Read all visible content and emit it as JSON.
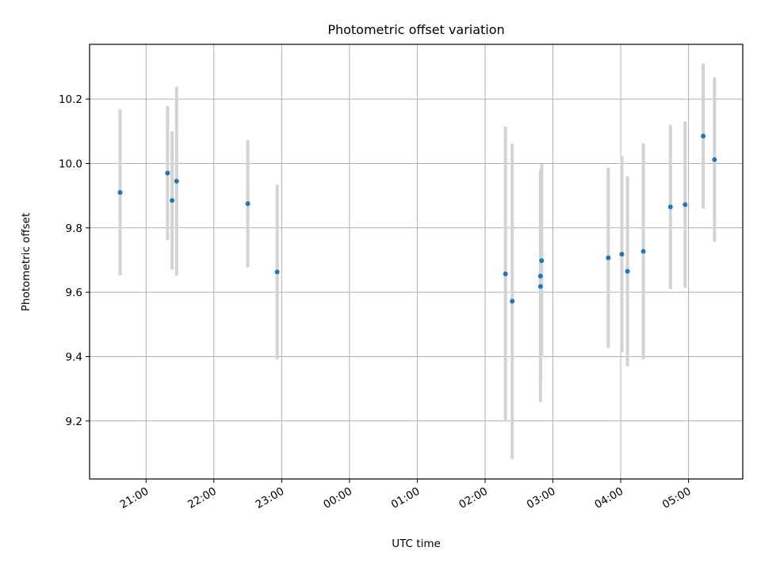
{
  "chart_data": {
    "type": "scatter",
    "title": "Photometric offset variation",
    "xlabel": "UTC time",
    "ylabel": "Photometric offset",
    "x_tick_labels": [
      "21:00",
      "22:00",
      "23:00",
      "00:00",
      "01:00",
      "02:00",
      "03:00",
      "04:00",
      "05:00"
    ],
    "x_ticks": [
      "21:00",
      "22:00",
      "23:00",
      "24:00",
      "25:00",
      "26:00",
      "27:00",
      "28:00",
      "29:00"
    ],
    "xlim": [
      "20:10",
      "29:48"
    ],
    "y_ticks": [
      9.2,
      9.4,
      9.6,
      9.8,
      10.0,
      10.2
    ],
    "y_tick_labels": [
      "9.2",
      "9.4",
      "9.6",
      "9.8",
      "10.0",
      "10.2"
    ],
    "ylim": [
      9.02,
      10.37
    ],
    "grid": true,
    "colors": {
      "point": "#1f77b4",
      "errorbar": "#d3d3d3",
      "grid": "#b0b0b0"
    },
    "points": [
      {
        "t": "20:37",
        "y": 9.91,
        "err": 0.258
      },
      {
        "t": "21:19",
        "y": 9.97,
        "err": 0.208
      },
      {
        "t": "21:23",
        "y": 9.885,
        "err": 0.215
      },
      {
        "t": "21:27",
        "y": 9.945,
        "err": 0.293
      },
      {
        "t": "22:30",
        "y": 9.875,
        "err": 0.198
      },
      {
        "t": "22:56",
        "y": 9.663,
        "err": 0.271
      },
      {
        "t": "26:18",
        "y": 9.657,
        "err": 0.458
      },
      {
        "t": "26:24",
        "y": 9.572,
        "err": 0.49
      },
      {
        "t": "26:50",
        "y": 9.698,
        "err": 0.3
      },
      {
        "t": "26:49",
        "y": 9.65,
        "err": 0.33
      },
      {
        "t": "26:49",
        "y": 9.618,
        "err": 0.36
      },
      {
        "t": "27:49",
        "y": 9.707,
        "err": 0.28
      },
      {
        "t": "28:01",
        "y": 9.718,
        "err": 0.305
      },
      {
        "t": "28:06",
        "y": 9.665,
        "err": 0.295
      },
      {
        "t": "28:20",
        "y": 9.727,
        "err": 0.335
      },
      {
        "t": "28:44",
        "y": 9.865,
        "err": 0.255
      },
      {
        "t": "28:57",
        "y": 9.872,
        "err": 0.258
      },
      {
        "t": "29:13",
        "y": 10.085,
        "err": 0.225
      },
      {
        "t": "29:23",
        "y": 10.012,
        "err": 0.255
      }
    ]
  }
}
